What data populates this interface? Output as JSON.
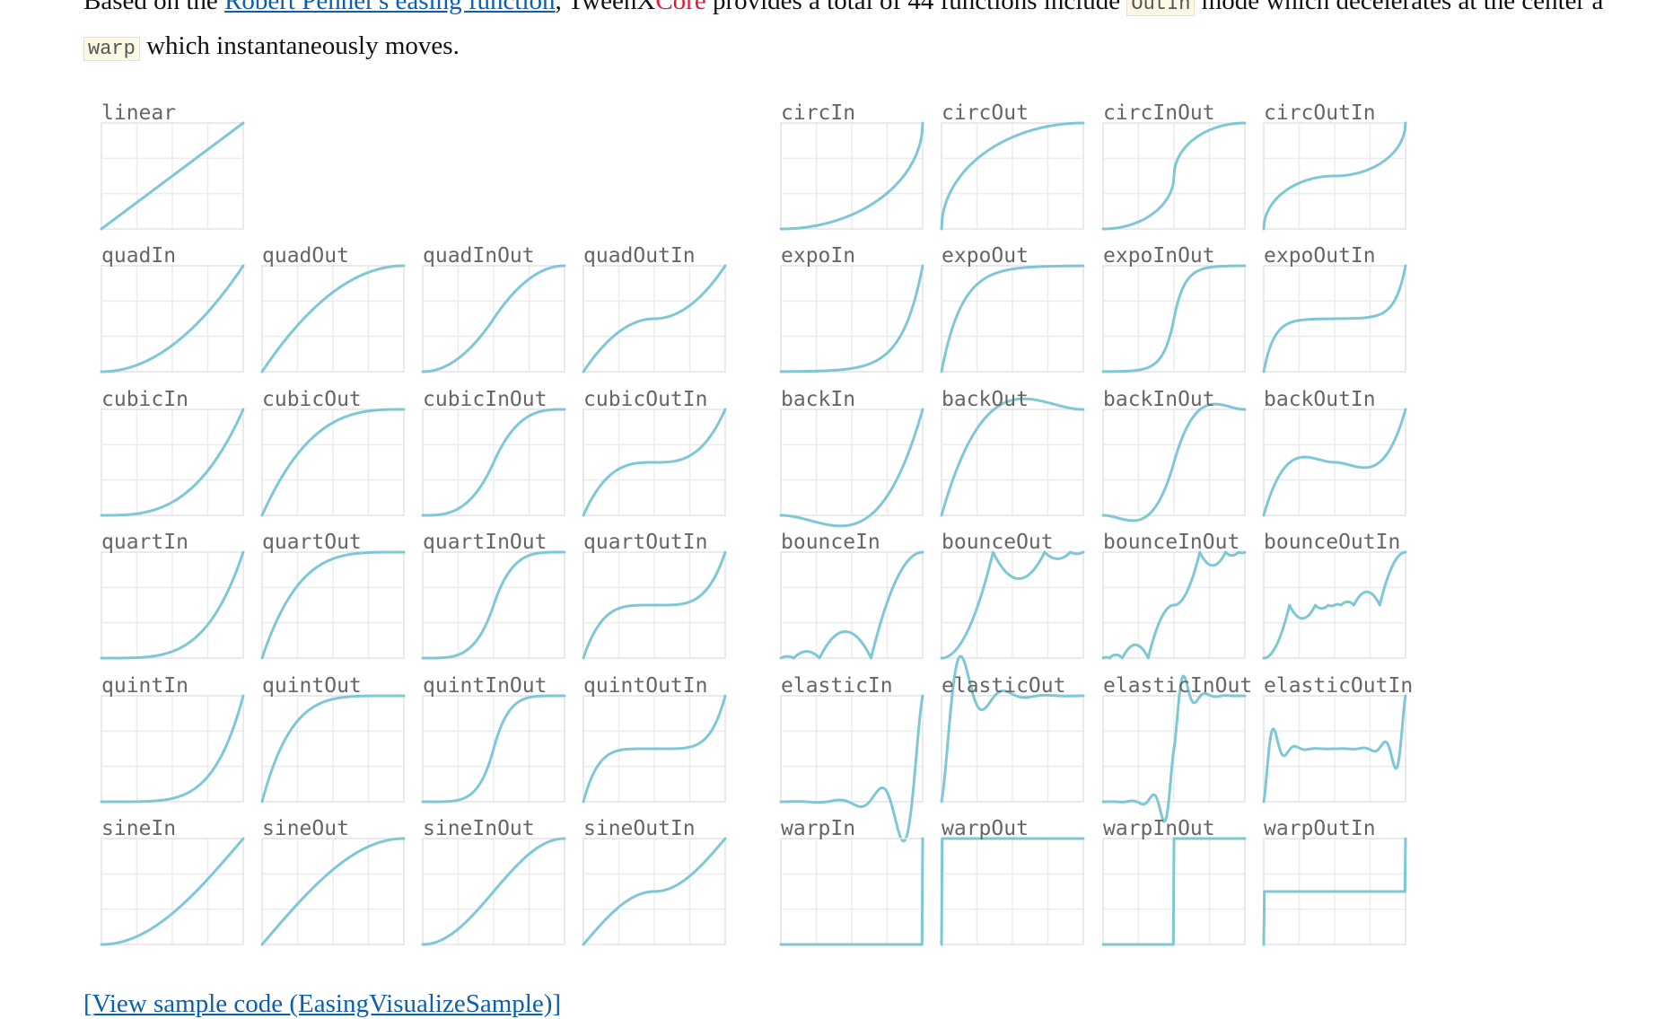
{
  "intro": {
    "line1_prefix": "Based on the ",
    "link": "Robert Penner's easing function",
    "line1_mid": ", TweenX",
    "core": "Core",
    "line1_suffix": " provides a total of 44 functions include ",
    "code_outin": "OutIn",
    "line1_tail": " mode which decelerates at the center a",
    "code_warp": "warp",
    "line2": " which instantaneously moves."
  },
  "colors": {
    "curve": "#7ec8d6",
    "link": "#0b5fb0",
    "core": "#e0193a"
  },
  "chart_data": {
    "type": "line",
    "title": "",
    "xlim": [
      0,
      1
    ],
    "ylim": [
      0,
      1
    ],
    "grid": true,
    "groups": [
      {
        "name": "linear",
        "curves": [
          "linear"
        ]
      },
      {
        "name": "quad",
        "curves": [
          "quadIn",
          "quadOut",
          "quadInOut",
          "quadOutIn"
        ]
      },
      {
        "name": "cubic",
        "curves": [
          "cubicIn",
          "cubicOut",
          "cubicInOut",
          "cubicOutIn"
        ]
      },
      {
        "name": "quart",
        "curves": [
          "quartIn",
          "quartOut",
          "quartInOut",
          "quartOutIn"
        ]
      },
      {
        "name": "quint",
        "curves": [
          "quintIn",
          "quintOut",
          "quintInOut",
          "quintOutIn"
        ]
      },
      {
        "name": "sine",
        "curves": [
          "sineIn",
          "sineOut",
          "sineInOut",
          "sineOutIn"
        ]
      },
      {
        "name": "circ",
        "curves": [
          "circIn",
          "circOut",
          "circInOut",
          "circOutIn"
        ]
      },
      {
        "name": "expo",
        "curves": [
          "expoIn",
          "expoOut",
          "expoInOut",
          "expoOutIn"
        ]
      },
      {
        "name": "back",
        "curves": [
          "backIn",
          "backOut",
          "backInOut",
          "backOutIn"
        ]
      },
      {
        "name": "bounce",
        "curves": [
          "bounceIn",
          "bounceOut",
          "bounceInOut",
          "bounceOutIn"
        ]
      },
      {
        "name": "elastic",
        "curves": [
          "elasticIn",
          "elasticOut",
          "elasticInOut",
          "elasticOutIn"
        ]
      },
      {
        "name": "warp",
        "curves": [
          "warpIn",
          "warpOut",
          "warpInOut",
          "warpOutIn"
        ]
      }
    ]
  },
  "footer": {
    "sample_link": "[View sample code (EasingVisualizeSample)]"
  }
}
